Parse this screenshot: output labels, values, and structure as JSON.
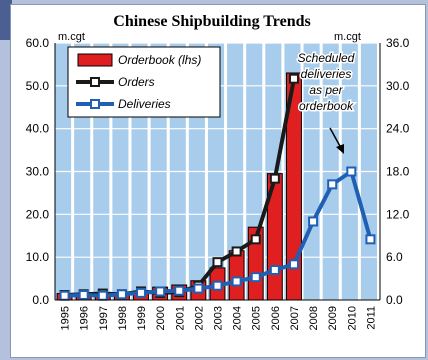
{
  "chart_data": {
    "type": "bar",
    "title": "Chinese Shipbuilding Trends",
    "left_unit": "m.cgt",
    "right_unit": "m.cgt",
    "categories": [
      "1995",
      "1996",
      "1997",
      "1998",
      "1999",
      "2000",
      "2001",
      "2002",
      "2003",
      "2004",
      "2005",
      "2006",
      "2007",
      "2008",
      "2009",
      "2010",
      "2011"
    ],
    "left_axis": {
      "ticks": [
        "0.0",
        "10.0",
        "20.0",
        "30.0",
        "40.0",
        "50.0",
        "60.0"
      ],
      "ylim": [
        0,
        60
      ]
    },
    "right_axis": {
      "ticks": [
        "0.0",
        "6.0",
        "12.0",
        "18.0",
        "24.0",
        "30.0",
        "36.0"
      ],
      "ylim": [
        0,
        36
      ]
    },
    "grid": true,
    "legend_position": "top-left",
    "series": [
      {
        "name": "Orderbook (lhs)",
        "kind": "bar",
        "axis": "left",
        "color": "#e02020",
        "values": [
          1.5,
          1.2,
          1.0,
          1.2,
          2.0,
          3.0,
          3.5,
          4.5,
          7.5,
          11.5,
          17.0,
          29.5,
          53.0,
          null,
          null,
          null,
          null
        ]
      },
      {
        "name": "Orders",
        "kind": "line",
        "axis": "right",
        "color": "#1a1a1a",
        "values": [
          0.7,
          0.8,
          0.9,
          0.8,
          1.2,
          1.0,
          1.1,
          2.0,
          5.3,
          6.8,
          8.5,
          17.0,
          31.0,
          null,
          null,
          null,
          null
        ]
      },
      {
        "name": "Deliveries",
        "kind": "line",
        "axis": "right",
        "color": "#1f5fb4",
        "values": [
          0.6,
          0.7,
          0.6,
          0.8,
          1.0,
          1.2,
          1.3,
          1.6,
          2.0,
          2.6,
          3.2,
          4.2,
          5.0,
          11.0,
          16.2,
          18.0,
          8.5
        ]
      }
    ],
    "annotation": {
      "lines": [
        "Scheduled",
        "deliveries",
        "as per",
        "orderbook"
      ]
    }
  },
  "colors": {
    "plot_background": "#a8ccec",
    "stripe": "#ffffff",
    "bar": "#e02020",
    "orders": "#1a1a1a",
    "deliveries": "#1f5fb4"
  }
}
